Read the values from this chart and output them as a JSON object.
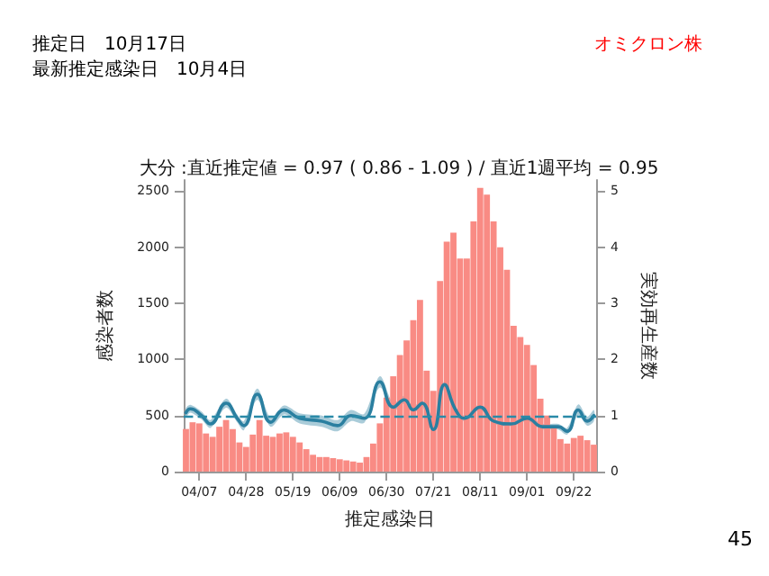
{
  "chart_data": {
    "type": "bar",
    "title": "大分 :直近推定値 = 0.97 ( 0.86 - 1.09 ) / 直近1週平均 = 0.95",
    "xlabel": "推定感染日",
    "ylabel": "感染者数",
    "y2label": "実効再生産数",
    "annotations": [
      "推定日　10月17日",
      "最新推定感染日　10月4日",
      "オミクロン株",
      "45"
    ],
    "x": [
      "--04-01",
      "--04-04",
      "--04-07",
      "--04-10",
      "--04-13",
      "--04-16",
      "--04-19",
      "--04-22",
      "--04-25",
      "--04-28",
      "--05-01",
      "--05-04",
      "--05-07",
      "--05-10",
      "--05-13",
      "--05-16",
      "--05-19",
      "--05-22",
      "--05-25",
      "--05-28",
      "--05-31",
      "--06-03",
      "--06-06",
      "--06-09",
      "--06-12",
      "--06-15",
      "--06-18",
      "--06-21",
      "--06-24",
      "--06-27",
      "--06-30",
      "--07-03",
      "--07-06",
      "--07-09",
      "--07-12",
      "--07-15",
      "--07-18",
      "--07-21",
      "--07-24",
      "--07-27",
      "--07-30",
      "--08-02",
      "--08-05",
      "--08-08",
      "--08-11",
      "--08-14",
      "--08-17",
      "--08-20",
      "--08-23",
      "--08-26",
      "--08-29",
      "--09-01",
      "--09-04",
      "--09-07",
      "--09-10",
      "--09-13",
      "--09-16",
      "--09-19",
      "--09-22",
      "--09-25",
      "--09-28",
      "--10-01"
    ],
    "series": [
      {
        "color": "#f98b84",
        "values": [
          380,
          440,
          430,
          340,
          310,
          400,
          460,
          380,
          260,
          220,
          330,
          460,
          320,
          310,
          340,
          350,
          310,
          260,
          200,
          150,
          130,
          130,
          120,
          110,
          100,
          90,
          80,
          130,
          250,
          430,
          660,
          850,
          1040,
          1170,
          1350,
          1530,
          900,
          720,
          1700,
          2050,
          2130,
          1900,
          1900,
          2230,
          2530,
          2470,
          2230,
          2000,
          1800,
          1300,
          1200,
          1130,
          950,
          650,
          500,
          400,
          290,
          250,
          300,
          320,
          280,
          240
        ]
      },
      {
        "type": "line",
        "axis": "y2",
        "color": "#2a7fa0",
        "x": [
          "--04-01",
          "--04-03",
          "--04-08",
          "--04-12",
          "--04-19",
          "--04-24",
          "--04-27",
          "--05-03",
          "--05-09",
          "--05-15",
          "--05-22",
          "--06-01",
          "--06-08",
          "--06-14",
          "--06-20",
          "--06-27",
          "--07-03",
          "--07-08",
          "--07-12",
          "--07-16",
          "--07-21",
          "--07-26",
          "--07-31",
          "--08-04",
          "--08-11",
          "--08-17",
          "--08-25",
          "--09-01",
          "--09-08",
          "--09-15",
          "--09-19",
          "--09-24",
          "--09-28",
          "--10-01"
        ],
        "values": [
          1.05,
          1.12,
          1.0,
          0.85,
          1.22,
          0.95,
          0.82,
          1.38,
          0.88,
          1.1,
          0.95,
          0.9,
          0.82,
          1.0,
          0.95,
          1.6,
          1.15,
          1.28,
          1.1,
          1.22,
          0.75,
          1.55,
          1.1,
          0.95,
          1.15,
          0.9,
          0.85,
          0.95,
          0.8,
          0.8,
          0.72,
          1.1,
          0.9,
          1.0
        ],
        "lower": [
          0.97,
          1.05,
          0.93,
          0.78,
          1.14,
          0.88,
          0.74,
          1.28,
          0.8,
          1.02,
          0.86,
          0.8,
          0.72,
          0.9,
          0.87,
          1.5,
          1.08,
          1.21,
          1.04,
          1.16,
          0.7,
          1.48,
          1.05,
          0.9,
          1.1,
          0.86,
          0.81,
          0.9,
          0.75,
          0.75,
          0.66,
          1.0,
          0.82,
          0.9
        ],
        "upper": [
          1.13,
          1.19,
          1.07,
          0.92,
          1.3,
          1.02,
          0.9,
          1.48,
          0.96,
          1.18,
          1.04,
          1.0,
          0.92,
          1.1,
          1.03,
          1.7,
          1.22,
          1.35,
          1.16,
          1.28,
          0.8,
          1.62,
          1.15,
          1.0,
          1.2,
          0.94,
          0.89,
          1.0,
          0.85,
          0.85,
          0.78,
          1.2,
          0.98,
          1.1
        ]
      }
    ],
    "xlim": [
      "--03-31",
      "--10-02"
    ],
    "xticks": [
      {
        "value": "--04-07",
        "label": "04/07"
      },
      {
        "value": "--04-28",
        "label": "04/28"
      },
      {
        "value": "--05-19",
        "label": "05/19"
      },
      {
        "value": "--06-09",
        "label": "06/09"
      },
      {
        "value": "--06-30",
        "label": "06/30"
      },
      {
        "value": "--07-21",
        "label": "07/21"
      },
      {
        "value": "--08-11",
        "label": "08/11"
      },
      {
        "value": "--09-01",
        "label": "09/01"
      },
      {
        "value": "--09-22",
        "label": "09/22"
      }
    ],
    "ylim": [
      0,
      2600
    ],
    "yticks": [
      0,
      500,
      1000,
      1500,
      2000,
      2500
    ],
    "y2lim": [
      0,
      5.2
    ],
    "y2ticks": [
      0,
      1,
      2,
      3,
      4,
      5
    ],
    "ref_lines": [
      {
        "axis": "y2",
        "value": 1,
        "color": "#2a8aa8",
        "line_style": "dashed"
      }
    ],
    "grid": false,
    "marker": "none",
    "line_style": "solid"
  }
}
